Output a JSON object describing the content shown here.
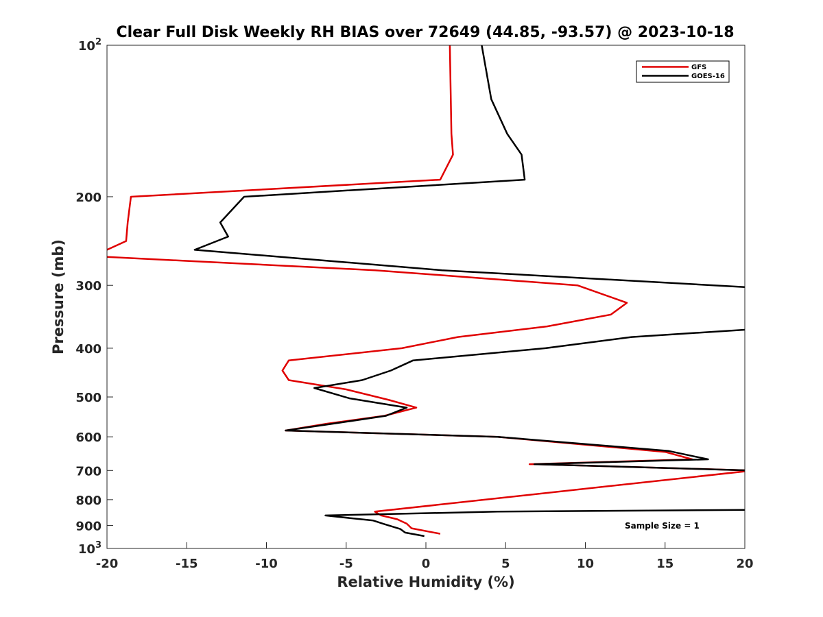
{
  "chart_data": {
    "type": "line",
    "title": "Clear Full Disk Weekly RH BIAS over 72649 (44.85, -93.57) @ 2023-10-18",
    "xlabel": "Relative Humidity (%)",
    "ylabel": "Pressure (mb)",
    "xlim": [
      -20,
      20
    ],
    "ylim": [
      100,
      1000
    ],
    "yscale": "log",
    "y_reversed": true,
    "grid": false,
    "legend_placement": "top-right",
    "x_ticks": [
      "-20",
      "-15",
      "-10",
      "-5",
      "0",
      "5",
      "10",
      "15",
      "20"
    ],
    "y_ticks": [
      {
        "value": 100,
        "base": "10",
        "exp": "2"
      },
      {
        "value": 200,
        "label": "200"
      },
      {
        "value": 300,
        "label": "300"
      },
      {
        "value": 400,
        "label": "400"
      },
      {
        "value": 500,
        "label": "500"
      },
      {
        "value": 600,
        "label": "600"
      },
      {
        "value": 700,
        "label": "700"
      },
      {
        "value": 800,
        "label": "800"
      },
      {
        "value": 900,
        "label": "900"
      },
      {
        "value": 1000,
        "base": "10",
        "exp": "3"
      }
    ],
    "series": [
      {
        "name": "GFS",
        "color": "#e00000",
        "points": [
          [
            1.5,
            100
          ],
          [
            1.6,
            150
          ],
          [
            1.7,
            165
          ],
          [
            0.9,
            185
          ],
          [
            -18.5,
            200
          ],
          [
            -18.7,
            225
          ],
          [
            -18.8,
            245
          ],
          [
            -20.0,
            255
          ],
          [
            -20.5,
            263
          ],
          [
            -3.2,
            280
          ],
          [
            2.0,
            288
          ],
          [
            9.5,
            300
          ],
          [
            12.6,
            325
          ],
          [
            11.6,
            343
          ],
          [
            7.6,
            362
          ],
          [
            2.0,
            380
          ],
          [
            -1.5,
            400
          ],
          [
            -8.6,
            423
          ],
          [
            -9.0,
            443
          ],
          [
            -8.6,
            463
          ],
          [
            -5.0,
            483
          ],
          [
            -2.3,
            507
          ],
          [
            -0.6,
            525
          ],
          [
            -2.6,
            545
          ],
          [
            -6.2,
            565
          ],
          [
            -8.8,
            583
          ],
          [
            4.5,
            600
          ],
          [
            15.0,
            643
          ],
          [
            16.7,
            665
          ],
          [
            6.5,
            680
          ],
          [
            6.9,
            680
          ],
          [
            20.5,
            700
          ],
          [
            -3.2,
            845
          ],
          [
            -2.8,
            860
          ],
          [
            -1.8,
            875
          ],
          [
            -1.2,
            893
          ],
          [
            -0.9,
            912
          ],
          [
            0.9,
            935
          ]
        ]
      },
      {
        "name": "GOES-16",
        "color": "#000000",
        "points": [
          [
            3.5,
            100
          ],
          [
            4.1,
            128
          ],
          [
            5.1,
            150
          ],
          [
            6.0,
            165
          ],
          [
            6.2,
            185
          ],
          [
            -11.4,
            200
          ],
          [
            -12.9,
            225
          ],
          [
            -12.4,
            240
          ],
          [
            -14.5,
            255
          ],
          [
            1.0,
            280
          ],
          [
            20.5,
            303
          ],
          [
            20.3,
            367
          ],
          [
            12.9,
            380
          ],
          [
            7.5,
            400
          ],
          [
            -0.8,
            423
          ],
          [
            -2.2,
            443
          ],
          [
            -4.0,
            463
          ],
          [
            -7.0,
            480
          ],
          [
            -4.8,
            503
          ],
          [
            -1.2,
            525
          ],
          [
            -2.5,
            545
          ],
          [
            -5.5,
            563
          ],
          [
            -8.8,
            583
          ],
          [
            4.5,
            600
          ],
          [
            15.2,
            640
          ],
          [
            17.7,
            665
          ],
          [
            6.8,
            680
          ],
          [
            20.5,
            700
          ],
          [
            20.2,
            838
          ],
          [
            4.5,
            845
          ],
          [
            -6.3,
            860
          ],
          [
            -3.3,
            880
          ],
          [
            -2.6,
            895
          ],
          [
            -1.6,
            915
          ],
          [
            -1.3,
            930
          ],
          [
            -0.1,
            945
          ]
        ]
      }
    ],
    "annotations": [
      "Sample Size = 1"
    ]
  }
}
